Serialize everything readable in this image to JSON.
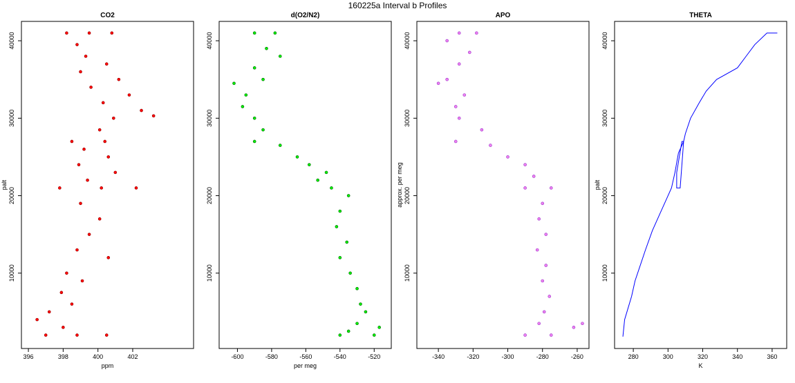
{
  "title": "160225a   Interval b Profiles",
  "chart_data": [
    {
      "type": "scatter",
      "title": "CO2",
      "x_label": "ppm",
      "y_label": "palt",
      "color": "#ff0000",
      "edgecolor": "#8b0000",
      "xlim": [
        395.6,
        405.5
      ],
      "xticks": [
        396,
        398,
        400,
        402
      ],
      "ylim": [
        270,
        42500
      ],
      "yticks": [
        10000,
        20000,
        30000,
        40000
      ],
      "x": [
        399.5,
        398.2,
        400.8,
        398.8,
        399.3,
        400.5,
        399.0,
        401.2,
        399.6,
        401.8,
        400.3,
        402.5,
        400.9,
        403.2,
        400.1,
        398.5,
        400.4,
        399.2,
        400.6,
        398.9,
        401.0,
        399.4,
        397.8,
        400.2,
        402.2,
        399.0,
        400.1,
        399.5,
        398.8,
        400.6,
        398.2,
        399.1,
        397.9,
        398.5,
        397.2,
        396.5,
        398.0,
        397.0,
        398.8,
        400.5
      ],
      "values": [
        41000,
        41000,
        41000,
        39500,
        38000,
        37000,
        36000,
        35000,
        34000,
        33000,
        32000,
        31000,
        30000,
        30300,
        28500,
        27000,
        27000,
        26000,
        25000,
        24000,
        23000,
        22000,
        21000,
        21000,
        21000,
        19000,
        17000,
        15000,
        13000,
        12000,
        10000,
        9000,
        7500,
        6000,
        5000,
        4000,
        3000,
        2000,
        2000,
        2000
      ]
    },
    {
      "type": "scatter",
      "title": "d(O2/N2)",
      "x_label": "per meg",
      "color": "#00ee00",
      "edgecolor": "#006400",
      "xlim": [
        -610.7,
        -510
      ],
      "xticks": [
        -600,
        -580,
        -560,
        -540,
        -520
      ],
      "ylim": [
        270,
        42500
      ],
      "yticks": [
        10000,
        20000,
        30000,
        40000
      ],
      "x": [
        -590,
        -578,
        -583,
        -575,
        -590,
        -585,
        -602,
        -595,
        -597,
        -590,
        -585,
        -590,
        -575,
        -565,
        -558,
        -548,
        -553,
        -545,
        -535,
        -540,
        -542,
        -536,
        -540,
        -534,
        -530,
        -528,
        -525,
        -530,
        -535,
        -540,
        -520,
        -517
      ],
      "values": [
        41000,
        41000,
        39000,
        38000,
        36500,
        35000,
        34500,
        33000,
        31500,
        30000,
        28500,
        27000,
        26500,
        25000,
        24000,
        23000,
        22000,
        21000,
        20000,
        18000,
        16000,
        14000,
        12000,
        10000,
        8000,
        6000,
        5000,
        3500,
        2500,
        2000,
        2000,
        3000
      ]
    },
    {
      "type": "scatter",
      "title": "APO",
      "y_label": "approx. per meg",
      "color": "#ee82ee",
      "edgecolor": "#9932cc",
      "xlim": [
        -352.4,
        -253.2
      ],
      "xticks": [
        -340,
        -320,
        -300,
        -280,
        -260
      ],
      "ylim": [
        270,
        42500
      ],
      "yticks": [
        10000,
        20000,
        30000,
        40000
      ],
      "x": [
        -328,
        -318,
        -335,
        -322,
        -328,
        -335,
        -340,
        -325,
        -330,
        -328,
        -315,
        -330,
        -310,
        -300,
        -290,
        -285,
        -290,
        -275,
        -280,
        -282,
        -278,
        -283,
        -278,
        -280,
        -276,
        -279,
        -282,
        -290,
        -275,
        -262,
        -257
      ],
      "values": [
        41000,
        41000,
        40000,
        38500,
        37000,
        35000,
        34500,
        33000,
        31500,
        30000,
        28500,
        27000,
        26500,
        25000,
        24000,
        22500,
        21000,
        21000,
        19000,
        17000,
        15000,
        13000,
        11000,
        9000,
        7000,
        5000,
        3500,
        2000,
        2000,
        3000,
        3500
      ]
    },
    {
      "type": "line",
      "title": "THETA",
      "x_label": "K",
      "y_label": "palt",
      "color": "#0000ff",
      "xlim": [
        269.2,
        368.4
      ],
      "xticks": [
        280,
        300,
        320,
        340,
        360
      ],
      "ylim": [
        270,
        42500
      ],
      "yticks": [
        10000,
        20000,
        30000,
        40000
      ],
      "x": [
        274,
        275,
        277,
        279,
        281,
        284,
        287,
        291,
        295,
        299,
        302,
        304,
        306,
        309,
        308,
        305,
        305,
        307,
        309,
        310,
        313,
        318,
        322,
        328,
        340,
        345,
        350,
        357,
        363
      ],
      "values": [
        1800,
        4000,
        5500,
        7000,
        9000,
        11000,
        13000,
        15500,
        17500,
        19500,
        21000,
        23000,
        25500,
        27000,
        27000,
        23000,
        21000,
        21000,
        27000,
        28000,
        30000,
        32000,
        33500,
        35000,
        36500,
        38000,
        39500,
        41000,
        41000
      ]
    }
  ]
}
